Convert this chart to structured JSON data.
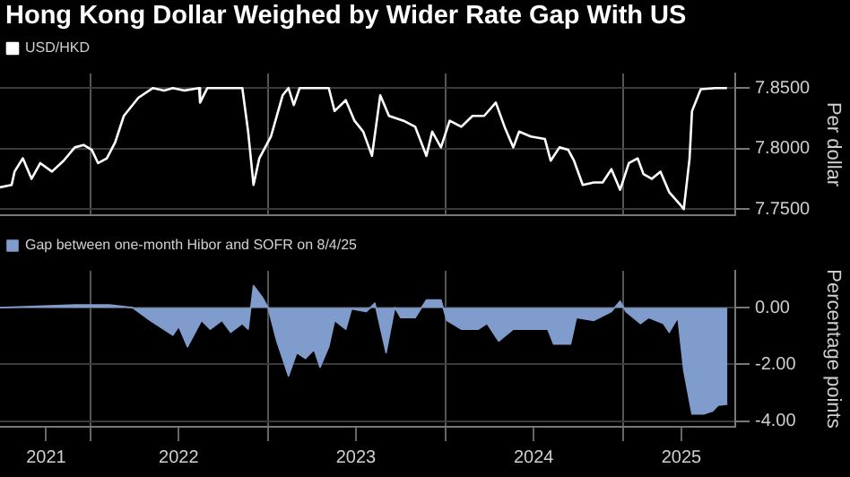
{
  "chart_data": [
    {
      "type": "line",
      "title": "Hong Kong Dollar Weighed by Wider Rate Gap With US",
      "ylabel": "Per dollar",
      "legend": "top left",
      "grid": true,
      "tick_labels": "y",
      "xlim": [
        "2021-06-28",
        "2025-08-20"
      ],
      "ylim": [
        7.745,
        7.862
      ],
      "yticks": [
        {
          "value": 7.75,
          "label": "7.7500"
        },
        {
          "value": 7.8,
          "label": "7.8000"
        },
        {
          "value": 7.85,
          "label": "7.8500"
        }
      ],
      "xticks": [
        {
          "value": "2022-01-01",
          "label": null
        },
        {
          "value": "2023-01-01",
          "label": null
        },
        {
          "value": "2024-01-01",
          "label": null
        },
        {
          "value": "2025-01-01",
          "label": null
        }
      ],
      "series": [
        {
          "name": "USD/HKD",
          "color": "#ffffff",
          "x": [
            "2021-06-28",
            "2021-07-22",
            "2021-07-28",
            "2021-08-14",
            "2021-09-01",
            "2021-09-19",
            "2021-10-13",
            "2021-11-06",
            "2021-11-29",
            "2021-12-17",
            "2022-01-03",
            "2022-01-16",
            "2022-02-03",
            "2022-02-20",
            "2022-03-10",
            "2022-04-09",
            "2022-05-09",
            "2022-06-01",
            "2022-06-19",
            "2022-07-13",
            "2022-08-12",
            "2022-08-14",
            "2022-08-29",
            "2022-11-09",
            "2022-11-21",
            "2022-12-02",
            "2022-12-14",
            "2023-01-07",
            "2023-01-31",
            "2023-02-12",
            "2023-02-23",
            "2023-03-07",
            "2023-05-06",
            "2023-05-18",
            "2023-06-10",
            "2023-06-28",
            "2023-07-16",
            "2023-08-03",
            "2023-08-20",
            "2023-09-07",
            "2023-10-07",
            "2023-10-31",
            "2023-11-23",
            "2023-12-05",
            "2023-12-23",
            "2024-01-10",
            "2024-02-03",
            "2024-02-26",
            "2024-03-21",
            "2024-04-14",
            "2024-05-02",
            "2024-05-20",
            "2024-06-01",
            "2024-06-25",
            "2024-07-24",
            "2024-08-05",
            "2024-08-23",
            "2024-09-10",
            "2024-09-22",
            "2024-10-10",
            "2024-11-02",
            "2024-11-20",
            "2024-12-08",
            "2024-12-26",
            "2025-01-13",
            "2025-01-31",
            "2025-02-12",
            "2025-03-01",
            "2025-03-19",
            "2025-04-06",
            "2025-04-30",
            "2025-05-06",
            "2025-05-18",
            "2025-05-23",
            "2025-06-10",
            "2025-07-10",
            "2025-08-03"
          ],
          "values": [
            7.768,
            7.77,
            7.781,
            7.792,
            7.775,
            7.788,
            7.781,
            7.79,
            7.801,
            7.803,
            7.799,
            7.788,
            7.792,
            7.805,
            7.827,
            7.842,
            7.85,
            7.848,
            7.85,
            7.848,
            7.85,
            7.838,
            7.85,
            7.85,
            7.814,
            7.77,
            7.792,
            7.81,
            7.844,
            7.85,
            7.836,
            7.85,
            7.85,
            7.831,
            7.84,
            7.823,
            7.814,
            7.794,
            7.844,
            7.827,
            7.823,
            7.818,
            7.794,
            7.814,
            7.801,
            7.823,
            7.818,
            7.827,
            7.827,
            7.838,
            7.818,
            7.801,
            7.814,
            7.81,
            7.808,
            7.79,
            7.801,
            7.799,
            7.79,
            7.77,
            7.772,
            7.772,
            7.783,
            7.766,
            7.788,
            7.792,
            7.779,
            7.775,
            7.781,
            7.764,
            7.753,
            7.75,
            7.792,
            7.831,
            7.849,
            7.85,
            7.85
          ]
        }
      ]
    },
    {
      "type": "area",
      "ylabel": "Percentage points",
      "legend": "top left",
      "grid": true,
      "xlim": [
        "2021-06-28",
        "2025-08-20"
      ],
      "ylim": [
        -4.2,
        1.3
      ],
      "yticks": [
        {
          "value": -4,
          "label": "-4.00"
        },
        {
          "value": -2,
          "label": "-2.00"
        },
        {
          "value": 0,
          "label": "0.00"
        }
      ],
      "xticks": [
        {
          "value": "2021-10-01",
          "label": "2021"
        },
        {
          "value": "2022-01-01",
          "label": null
        },
        {
          "value": "2022-07-01",
          "label": "2022"
        },
        {
          "value": "2023-01-01",
          "label": null
        },
        {
          "value": "2023-07-01",
          "label": "2023"
        },
        {
          "value": "2024-01-01",
          "label": null
        },
        {
          "value": "2024-07-01",
          "label": "2024"
        },
        {
          "value": "2025-01-01",
          "label": null
        },
        {
          "value": "2025-05-01",
          "label": "2025"
        }
      ],
      "series": [
        {
          "name": "Gap between one-month Hibor and SOFR on 8/4/25",
          "color": "#7f9ccc",
          "x": [
            "2021-06-28",
            "2021-11-29",
            "2022-02-09",
            "2022-03-28",
            "2022-05-03",
            "2022-06-19",
            "2022-07-01",
            "2022-07-19",
            "2022-08-17",
            "2022-09-04",
            "2022-09-28",
            "2022-10-16",
            "2022-11-09",
            "2022-11-21",
            "2022-12-02",
            "2022-12-20",
            "2023-01-01",
            "2023-01-19",
            "2023-02-12",
            "2023-03-01",
            "2023-03-19",
            "2023-04-06",
            "2023-04-18",
            "2023-05-06",
            "2023-05-18",
            "2023-06-10",
            "2023-06-22",
            "2023-07-22",
            "2023-08-09",
            "2023-09-01",
            "2023-09-19",
            "2023-10-01",
            "2023-10-31",
            "2023-11-23",
            "2023-12-23",
            "2024-01-04",
            "2024-02-03",
            "2024-03-09",
            "2024-03-27",
            "2024-04-20",
            "2024-05-20",
            "2024-07-06",
            "2024-07-30",
            "2024-08-11",
            "2024-09-15",
            "2024-09-27",
            "2024-11-02",
            "2024-12-08",
            "2024-12-26",
            "2025-01-07",
            "2025-02-06",
            "2025-02-23",
            "2025-03-25",
            "2025-04-06",
            "2025-04-24",
            "2025-05-06",
            "2025-05-23",
            "2025-06-16",
            "2025-07-04",
            "2025-07-16",
            "2025-08-04"
          ],
          "values": [
            0.0,
            0.1,
            0.1,
            0.0,
            -0.45,
            -0.97,
            -0.66,
            -1.38,
            -0.45,
            -0.76,
            -0.45,
            -0.87,
            -0.56,
            -0.76,
            0.78,
            0.37,
            0.0,
            -1.18,
            -2.41,
            -1.59,
            -1.79,
            -1.48,
            -2.1,
            -1.38,
            -0.45,
            -0.76,
            -0.04,
            -0.14,
            0.16,
            -1.59,
            0.0,
            -0.35,
            -0.35,
            0.27,
            0.27,
            -0.45,
            -0.76,
            -0.76,
            -0.56,
            -1.18,
            -0.76,
            -0.76,
            -0.76,
            -1.28,
            -1.28,
            -0.35,
            -0.45,
            -0.14,
            0.23,
            -0.14,
            -0.56,
            -0.35,
            -0.56,
            -0.87,
            -0.35,
            -2.21,
            -3.75,
            -3.75,
            -3.65,
            -3.44,
            -3.4
          ]
        }
      ]
    }
  ]
}
